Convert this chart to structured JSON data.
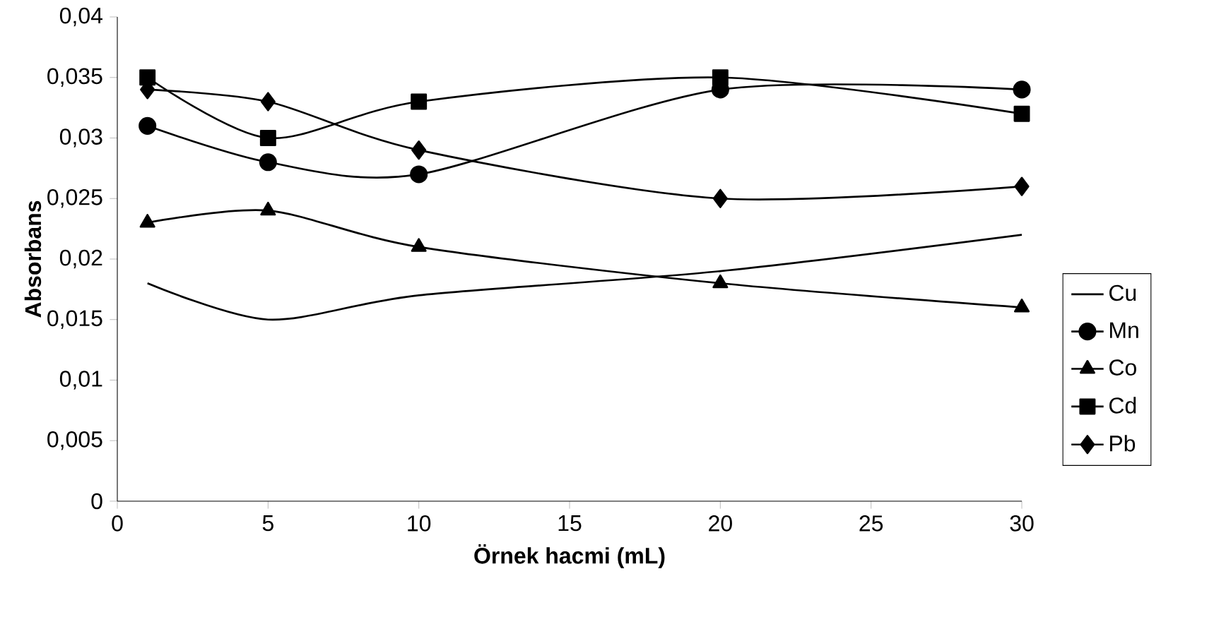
{
  "chart_data": {
    "type": "line",
    "xlabel": "Örnek hacmi (mL)",
    "ylabel": "Absorbans",
    "x": [
      1,
      5,
      10,
      20,
      30
    ],
    "series": [
      {
        "name": "Cu",
        "color": "#000000",
        "marker": "none",
        "values": [
          0.018,
          0.015,
          0.017,
          0.019,
          0.022
        ]
      },
      {
        "name": "Mn",
        "color": "#000000",
        "marker": "circle",
        "values": [
          0.031,
          0.028,
          0.027,
          0.034,
          0.034
        ]
      },
      {
        "name": "Co",
        "color": "#000000",
        "marker": "triangle",
        "values": [
          0.023,
          0.024,
          0.021,
          0.018,
          0.016
        ]
      },
      {
        "name": "Cd",
        "color": "#000000",
        "marker": "square",
        "values": [
          0.035,
          0.03,
          0.033,
          0.035,
          0.032
        ]
      },
      {
        "name": "Pb",
        "color": "#000000",
        "marker": "diamond",
        "values": [
          0.034,
          0.033,
          0.029,
          0.025,
          0.026
        ]
      }
    ],
    "xlim": [
      0,
      30
    ],
    "xticks": [
      0,
      5,
      10,
      15,
      20,
      25,
      30
    ],
    "ylim": [
      0,
      0.04
    ],
    "yticks": [
      0,
      {
        "value": 0.005,
        "label": "0,005"
      },
      {
        "value": 0.01,
        "label": "0,01"
      },
      {
        "value": 0.015,
        "label": "0,015"
      },
      {
        "value": 0.02,
        "label": "0,02"
      },
      {
        "value": 0.025,
        "label": "0,025"
      },
      {
        "value": 0.03,
        "label": "0,03"
      },
      {
        "value": 0.035,
        "label": "0,035"
      },
      {
        "value": 0.04,
        "label": "0,04"
      }
    ],
    "grid": false,
    "legend": "right",
    "line_style": "solid"
  }
}
